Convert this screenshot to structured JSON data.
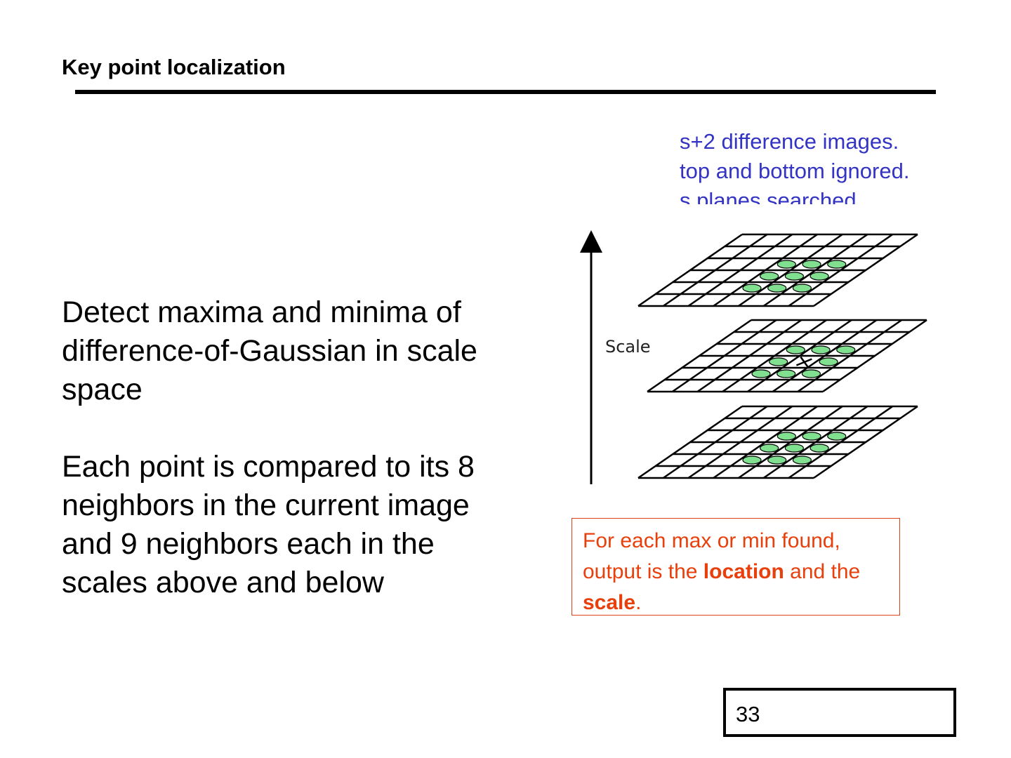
{
  "slide": {
    "title": "Key point localization",
    "note_lines": [
      "s+2 difference images.",
      "top and bottom ignored.",
      "s planes searched."
    ],
    "body": [
      "Detect maxima and minima of difference-of-Gaussian in scale space",
      "Each point is compared to its 8 neighbors in the current image and 9 neighbors each in the scales above and below"
    ],
    "figure": {
      "axis_label": "Scale",
      "neighbor_color": "#80e090",
      "planes": 3,
      "grid_rows": 6,
      "grid_cols": 7
    },
    "callout": {
      "part1": "For each max or min found, output is the ",
      "bold1": "location",
      "part2": " and the ",
      "bold2": "scale",
      "part3": "."
    },
    "page_number": "33",
    "colors": {
      "note": "#3333c4",
      "callout": "#e8400c"
    }
  }
}
